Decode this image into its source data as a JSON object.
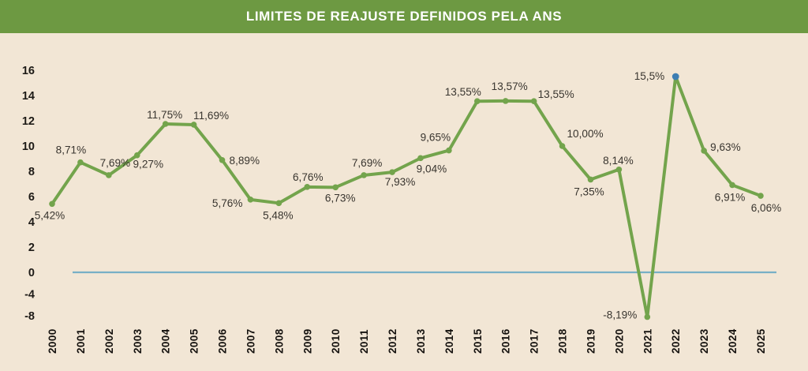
{
  "header": {
    "title": "LIMITES DE REAJUSTE DEFINIDOS PELA ANS"
  },
  "colors": {
    "header_bg": "#6d9942",
    "background": "#f2e6d5",
    "line": "#73a44c",
    "marker": "#73a44c",
    "highlight_marker": "#3d7eb3",
    "zero_line": "#78b0c6",
    "title_text": "#ffffff",
    "label_text": "#39352f",
    "axis_text": "#1d1a16"
  },
  "chart_data": {
    "type": "line",
    "title": "LIMITES DE REAJUSTE DEFINIDOS PELA ANS",
    "xlabel": "",
    "ylabel": "",
    "x": [
      "2000",
      "2001",
      "2002",
      "2003",
      "2004",
      "2005",
      "2006",
      "2007",
      "2008",
      "2009",
      "2010",
      "2011",
      "2012",
      "2013",
      "2014",
      "2015",
      "2016",
      "2017",
      "2018",
      "2019",
      "2020",
      "2021",
      "2022",
      "2023",
      "2024",
      "2025"
    ],
    "values": [
      5.42,
      8.71,
      7.69,
      9.27,
      11.75,
      11.69,
      8.89,
      5.76,
      5.48,
      6.76,
      6.73,
      7.69,
      7.93,
      9.04,
      9.65,
      13.55,
      13.57,
      13.55,
      10.0,
      7.35,
      8.14,
      -8.19,
      15.5,
      9.63,
      6.91,
      6.06
    ],
    "labels": [
      "5,42%",
      "8,71%",
      "7,69%",
      "9,27%",
      "11,75%",
      "11,69%",
      "8,89%",
      "5,76%",
      "5,48%",
      "6,76%",
      "6,73%",
      "7,69%",
      "7,93%",
      "9,04%",
      "9,65%",
      "13,55%",
      "13,57%",
      "13,55%",
      "10,00%",
      "7,35%",
      "8,14%",
      "-8,19%",
      "15,5%",
      "9,63%",
      "6,91%",
      "6,06%"
    ],
    "y_ticks": [
      16,
      14,
      12,
      10,
      8,
      6,
      4,
      2,
      0,
      -4,
      -8
    ],
    "y_tick_labels": [
      "16",
      "14",
      "12",
      "10",
      "8",
      "6",
      "4",
      "2",
      "0",
      "-4",
      "-8"
    ],
    "ylim": [
      -8.19,
      16
    ],
    "grid": "off",
    "legend": "none",
    "zero_line": true,
    "highlight_point": {
      "x": "2022",
      "marker_color": "#3d7eb3"
    },
    "label_offsets": [
      [
        -3,
        19,
        "middle"
      ],
      [
        -12,
        -11,
        "middle"
      ],
      [
        8,
        -11,
        "middle"
      ],
      [
        14,
        16,
        "middle"
      ],
      [
        -1,
        -7,
        "middle"
      ],
      [
        22,
        -7,
        "middle"
      ],
      [
        9,
        5,
        "start"
      ],
      [
        -10,
        9,
        "end"
      ],
      [
        -1,
        20,
        "middle"
      ],
      [
        1,
        -8,
        "middle"
      ],
      [
        6,
        18,
        "middle"
      ],
      [
        4,
        -11,
        "middle"
      ],
      [
        10,
        17,
        "middle"
      ],
      [
        14,
        18,
        "middle"
      ],
      [
        -17,
        -12,
        "middle"
      ],
      [
        -18,
        -7,
        "middle"
      ],
      [
        5,
        -14,
        "middle"
      ],
      [
        28,
        -4,
        "middle"
      ],
      [
        29,
        -11,
        "middle"
      ],
      [
        -2,
        20,
        "middle"
      ],
      [
        -1,
        -7,
        "middle"
      ],
      [
        -13,
        2,
        "end"
      ],
      [
        -14,
        4,
        "end"
      ],
      [
        8,
        0,
        "start"
      ],
      [
        -3,
        20,
        "middle"
      ],
      [
        7,
        20,
        "middle"
      ]
    ]
  }
}
